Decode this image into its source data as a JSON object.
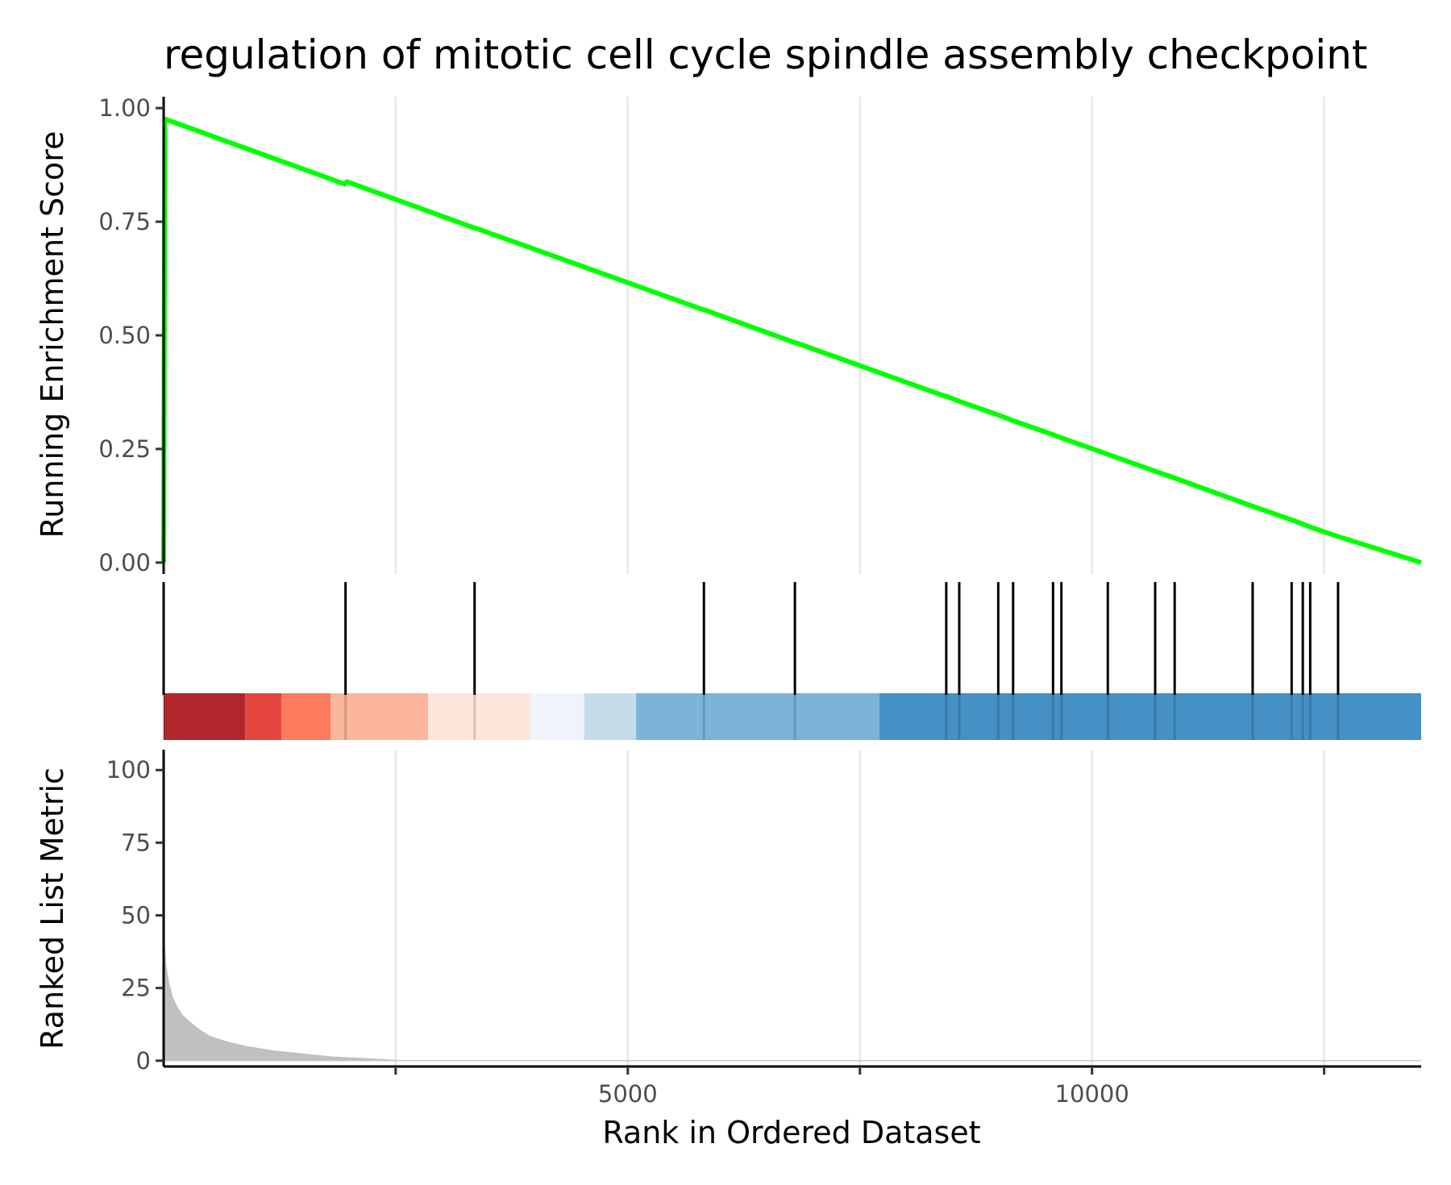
{
  "chart_data": {
    "type": "line",
    "title": "regulation of mitotic cell cycle spindle assembly checkpoint",
    "xlabel": "Rank in Ordered Dataset",
    "x_range": [
      1,
      13545
    ],
    "x_ticks": [
      2500,
      5000,
      7500,
      10000,
      12500
    ],
    "x_tick_labels": [
      "5000",
      "10000"
    ],
    "x_labeled_ticks": [
      5000,
      10000
    ],
    "grid": "vertical major lines",
    "panels": {
      "running_score": {
        "ylabel": "Running Enrichment Score",
        "ylim": [
          -0.025,
          1.025
        ],
        "y_ticks": [
          0,
          0.25,
          0.5,
          0.75,
          1.0
        ],
        "y_tick_labels": [
          "0.00",
          "0.25",
          "0.50",
          "0.75",
          "1.00"
        ],
        "line_color": "#00ff00",
        "series": [
          {
            "x": [
              1,
              14,
              1950,
              1975,
              3340,
              3360,
              5820,
              5840,
              6800,
              6820,
              8420,
              8440,
              8570,
              9000,
              9140,
              9560,
              9650,
              10160,
              10680,
              10890,
              11730,
              12150,
              12270,
              12340,
              12640,
              13545
            ],
            "y": [
              0,
              0.976,
              0.833,
              0.838,
              0.737,
              0.736,
              0.556,
              0.555,
              0.484,
              0.483,
              0.366,
              0.365,
              0.355,
              0.324,
              0.313,
              0.283,
              0.276,
              0.239,
              0.201,
              0.186,
              0.124,
              0.094,
              0.085,
              0.079,
              0.058,
              0
            ]
          }
        ]
      },
      "hits": {
        "positions": [
          1,
          1960,
          3350,
          5820,
          6800,
          8430,
          8570,
          8990,
          9150,
          9580,
          9670,
          10170,
          10680,
          10890,
          11730,
          12150,
          12270,
          12350,
          12650
        ],
        "color_bands": [
          {
            "from": 1,
            "to": 880,
            "color": "#b2272d"
          },
          {
            "from": 880,
            "to": 1270,
            "color": "#e4463d"
          },
          {
            "from": 1270,
            "to": 1800,
            "color": "#fb7b5c"
          },
          {
            "from": 1800,
            "to": 2850,
            "color": "#fbb69c"
          },
          {
            "from": 2850,
            "to": 3950,
            "color": "#fee5dc"
          },
          {
            "from": 3950,
            "to": 4530,
            "color": "#eff3fc"
          },
          {
            "from": 4530,
            "to": 5090,
            "color": "#c5dbea"
          },
          {
            "from": 5090,
            "to": 7710,
            "color": "#7bb4d8"
          },
          {
            "from": 7710,
            "to": 13545,
            "color": "#4590c5"
          }
        ]
      },
      "ranked_metric": {
        "ylabel": "Ranked List Metric",
        "ylim": [
          -2,
          107
        ],
        "y_ticks": [
          0,
          25,
          50,
          75,
          100
        ],
        "y_tick_labels": [
          "0",
          "25",
          "50",
          "75",
          "100"
        ],
        "fill_color": "#c0c0c0",
        "x": [
          1,
          10,
          30,
          60,
          100,
          150,
          200,
          300,
          400,
          500,
          700,
          900,
          1200,
          1500,
          1800,
          2100,
          2400,
          2600,
          13545
        ],
        "values": [
          105,
          42,
          33,
          27,
          22,
          18.5,
          16,
          13,
          10.5,
          8.5,
          6.5,
          5,
          3.5,
          2.5,
          1.5,
          1,
          0.5,
          0.1,
          0
        ]
      }
    }
  }
}
